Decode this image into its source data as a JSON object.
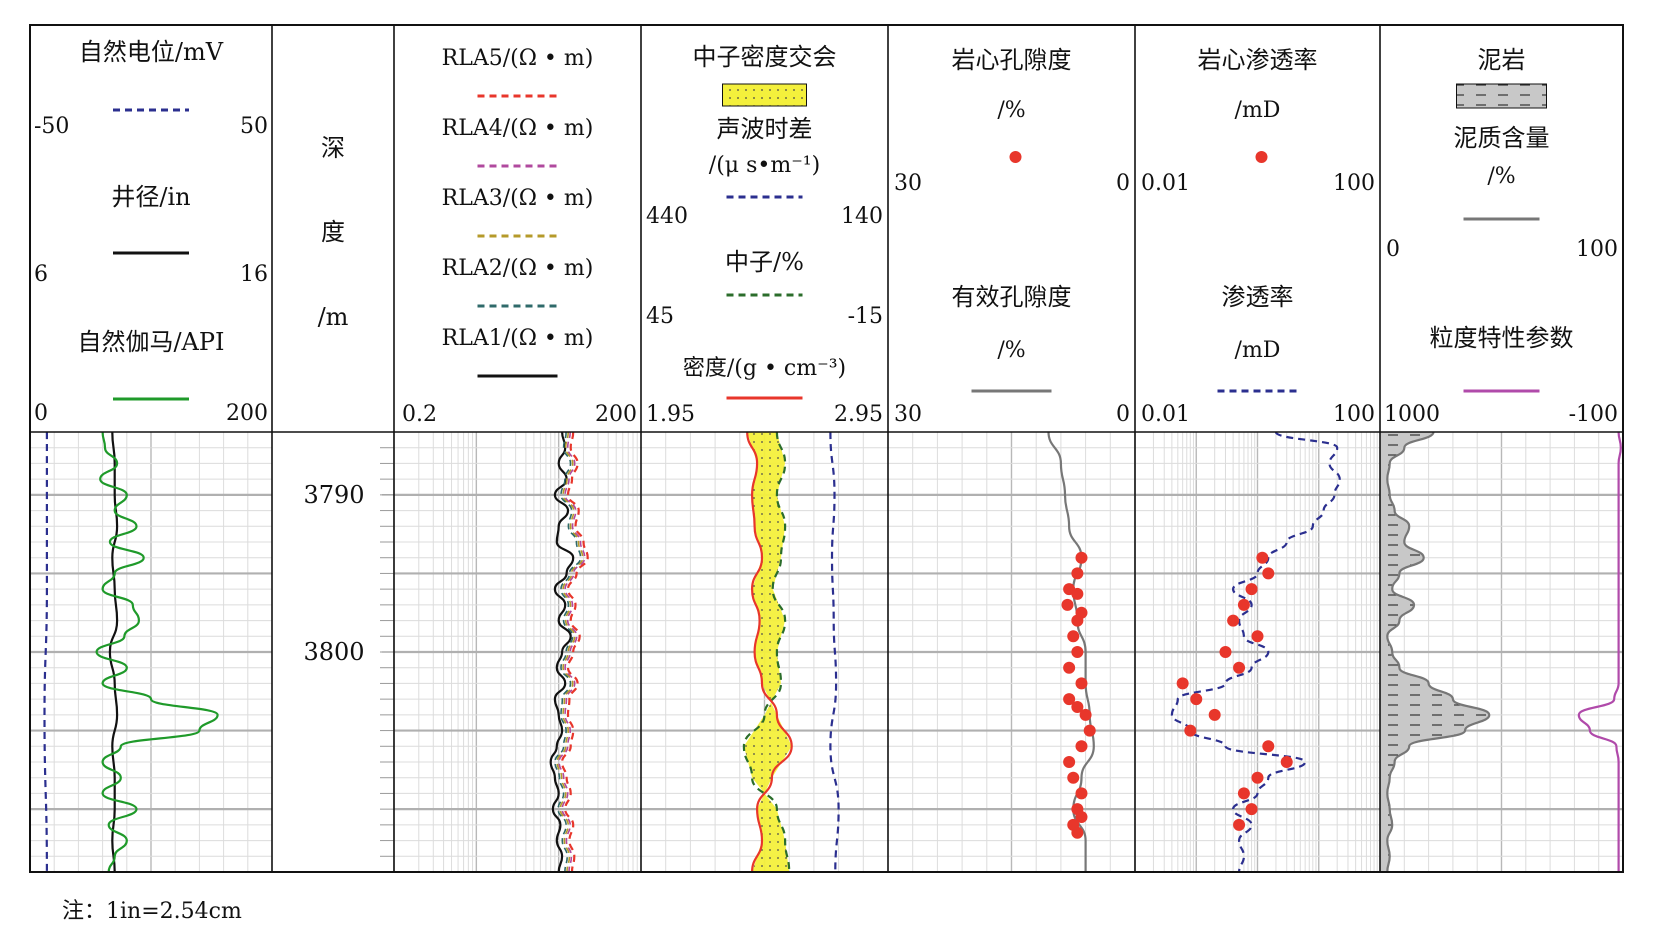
{
  "tracks": [
    {
      "id": "sp-cal-gr",
      "items": [
        {
          "kind": "curve",
          "name": "自然电位/mV",
          "color": "#2b2f8f",
          "dash": true,
          "scale": [
            "-50",
            "50"
          ]
        },
        {
          "kind": "curve",
          "name": "井径/in",
          "color": "#111111",
          "dash": false,
          "scale": [
            "6",
            "16"
          ]
        },
        {
          "kind": "curve",
          "name": "自然伽马/API",
          "color": "#1f9a2a",
          "dash": false,
          "scale": [
            "0",
            "200"
          ]
        }
      ]
    },
    {
      "id": "depth",
      "title": [
        "深",
        "度",
        "/m"
      ]
    },
    {
      "id": "resistivity",
      "items": [
        {
          "kind": "curve",
          "name": "RLA5/(Ω • m)",
          "color": "#e8362b",
          "dash": true
        },
        {
          "kind": "curve",
          "name": "RLA4/(Ω • m)",
          "color": "#b0499e",
          "dash": true
        },
        {
          "kind": "curve",
          "name": "RLA3/(Ω • m)",
          "color": "#b59a2a",
          "dash": true
        },
        {
          "kind": "curve",
          "name": "RLA2/(Ω • m)",
          "color": "#2f6a6a",
          "dash": true
        },
        {
          "kind": "curve",
          "name": "RLA1/(Ω • m)",
          "color": "#111111",
          "dash": false
        }
      ],
      "scale": [
        "0.2",
        "200"
      ]
    },
    {
      "id": "porosity-logs",
      "items": [
        {
          "kind": "fill",
          "name": "中子密度交会",
          "color": "#f4f03c"
        },
        {
          "kind": "curve",
          "name": "声波时差",
          "unit": "/(μ s•m⁻¹)",
          "color": "#2b2f8f",
          "dash": true,
          "scale": [
            "440",
            "140"
          ]
        },
        {
          "kind": "curve",
          "name": "中子/%",
          "color": "#2b6d2b",
          "dash": true,
          "scale": [
            "45",
            "-15"
          ]
        },
        {
          "kind": "curve",
          "name": "密度/(g • cm⁻³)",
          "color": "#e8362b",
          "dash": false,
          "scale": [
            "1.95",
            "2.95"
          ]
        }
      ]
    },
    {
      "id": "porosity",
      "items": [
        {
          "kind": "dot",
          "name": "岩心孔隙度",
          "unit": "/%",
          "color": "#e8362b",
          "scale": [
            "30",
            "0"
          ]
        },
        {
          "kind": "curve",
          "name": "有效孔隙度",
          "unit": "/%",
          "color": "#777777",
          "dash": false,
          "scale": [
            "30",
            "0"
          ]
        }
      ]
    },
    {
      "id": "permeability",
      "items": [
        {
          "kind": "dot",
          "name": "岩心渗透率",
          "unit": "/mD",
          "color": "#e8362b",
          "scale": [
            "0.01",
            "100"
          ]
        },
        {
          "kind": "curve",
          "name": "渗透率",
          "unit": "/mD",
          "color": "#2b2f8f",
          "dash": true,
          "scale": [
            "0.01",
            "100"
          ]
        }
      ]
    },
    {
      "id": "lithology",
      "items": [
        {
          "kind": "pattern",
          "name": "泥岩",
          "color": "#c8c8c8"
        },
        {
          "kind": "curve",
          "name": "泥质含量",
          "unit": "/%",
          "color": "#777777",
          "dash": false,
          "scale": [
            "0",
            "100"
          ]
        },
        {
          "kind": "curve",
          "name": "粒度特性参数",
          "color": "#b04aaa",
          "dash": false,
          "scale": [
            "1000",
            "-100"
          ]
        }
      ]
    }
  ],
  "depth_labels": [
    "3790",
    "3800"
  ],
  "note": "注：1in=2.54cm",
  "chart_data": {
    "type": "line",
    "depth_range": [
      3786,
      3814
    ],
    "depth_unit": "m",
    "depth_ticks": [
      3790,
      3800
    ],
    "series": [
      {
        "name": "自然电位/mV",
        "track": "sp-cal-gr",
        "range": [
          -50,
          50
        ],
        "depth": [
          3786,
          3790,
          3796,
          3804,
          3814
        ],
        "values": [
          -43,
          -43,
          -43,
          -44,
          -43
        ]
      },
      {
        "name": "井径/in",
        "track": "sp-cal-gr",
        "range": [
          6,
          16
        ],
        "depth": [
          3786,
          3788,
          3790,
          3792,
          3794,
          3796,
          3798,
          3800,
          3802,
          3804,
          3806,
          3808,
          3810,
          3812,
          3814
        ],
        "values": [
          9.4,
          9.5,
          9.5,
          9.6,
          9.4,
          9.5,
          9.6,
          9.3,
          9.5,
          9.6,
          9.4,
          9.5,
          9.5,
          9.4,
          9.5
        ]
      },
      {
        "name": "自然伽马/API",
        "track": "sp-cal-gr",
        "range": [
          0,
          200
        ],
        "depth": [
          3786,
          3787,
          3788,
          3789,
          3790,
          3791,
          3792,
          3793,
          3794,
          3795,
          3796,
          3797,
          3798,
          3799,
          3800,
          3801,
          3802,
          3803,
          3804,
          3805,
          3806,
          3807,
          3808,
          3809,
          3810,
          3811,
          3812,
          3813,
          3814
        ],
        "values": [
          60,
          62,
          72,
          58,
          80,
          70,
          88,
          66,
          94,
          70,
          60,
          85,
          90,
          78,
          55,
          80,
          60,
          100,
          155,
          140,
          75,
          60,
          75,
          60,
          88,
          65,
          80,
          70,
          65
        ]
      },
      {
        "name": "RLA1/(Ω • m)",
        "track": "resistivity",
        "range": [
          0.2,
          200
        ],
        "log": true,
        "depth": [
          3786,
          3787,
          3788,
          3789,
          3790,
          3791,
          3792,
          3793,
          3794,
          3795,
          3796,
          3797,
          3798,
          3799,
          3800,
          3801,
          3802,
          3803,
          3804,
          3805,
          3806,
          3807,
          3808,
          3809,
          3810,
          3811,
          3812,
          3813,
          3814
        ],
        "values": [
          22,
          24,
          20,
          25,
          18,
          26,
          20,
          19,
          30,
          25,
          18,
          24,
          20,
          28,
          22,
          19,
          24,
          18,
          20,
          22,
          19,
          16,
          18,
          20,
          17,
          21,
          19,
          22,
          20
        ]
      },
      {
        "name": "RLA5/(Ω • m)",
        "track": "resistivity",
        "range": [
          0.2,
          200
        ],
        "log": true,
        "depth": [
          3786,
          3787,
          3788,
          3789,
          3790,
          3791,
          3792,
          3793,
          3794,
          3795,
          3796,
          3797,
          3798,
          3799,
          3800,
          3801,
          3802,
          3803,
          3804,
          3805,
          3806,
          3807,
          3808,
          3809,
          3810,
          3811,
          3812,
          3813,
          3814
        ],
        "values": [
          30,
          28,
          34,
          29,
          26,
          35,
          32,
          40,
          45,
          33,
          26,
          32,
          28,
          36,
          30,
          26,
          34,
          27,
          26,
          30,
          28,
          22,
          25,
          28,
          24,
          30,
          27,
          31,
          29
        ]
      },
      {
        "name": "声波时差",
        "track": "porosity-logs",
        "range": [
          440,
          140
        ],
        "depth": [
          3786,
          3790,
          3794,
          3798,
          3802,
          3806,
          3810,
          3814
        ],
        "values": [
          210,
          205,
          208,
          206,
          203,
          210,
          200,
          204
        ]
      },
      {
        "name": "中子/%",
        "track": "porosity-logs",
        "range": [
          45,
          -15
        ],
        "depth": [
          3786,
          3788,
          3790,
          3792,
          3794,
          3796,
          3798,
          3800,
          3802,
          3804,
          3806,
          3808,
          3810,
          3812,
          3814
        ],
        "values": [
          12,
          10,
          12,
          10,
          11,
          13,
          10,
          12,
          11,
          15,
          20,
          18,
          12,
          10,
          9
        ]
      },
      {
        "name": "密度/(g • cm⁻³)",
        "track": "porosity-logs",
        "range": [
          1.95,
          2.95
        ],
        "depth": [
          3786,
          3788,
          3790,
          3792,
          3794,
          3796,
          3798,
          3800,
          3802,
          3804,
          3806,
          3808,
          3810,
          3812,
          3814
        ],
        "values": [
          2.38,
          2.42,
          2.4,
          2.41,
          2.44,
          2.4,
          2.43,
          2.41,
          2.44,
          2.5,
          2.56,
          2.48,
          2.42,
          2.44,
          2.4
        ]
      },
      {
        "name": "有效孔隙度",
        "track": "porosity",
        "range": [
          30,
          0
        ],
        "depth": [
          3786,
          3788,
          3790,
          3792,
          3794,
          3796,
          3798,
          3800,
          3802,
          3804,
          3806,
          3808,
          3810,
          3812,
          3814
        ],
        "values": [
          10.5,
          9.0,
          8.5,
          8.0,
          6.5,
          7.5,
          7.0,
          6.0,
          6.0,
          5.5,
          5.0,
          6.5,
          7.5,
          6.0,
          6.0
        ]
      },
      {
        "name": "岩心孔隙度",
        "track": "porosity",
        "kind": "dot",
        "range": [
          30,
          0
        ],
        "depth": [
          3794,
          3795,
          3796,
          3796.3,
          3797,
          3797.5,
          3798,
          3799,
          3800,
          3801,
          3802,
          3803,
          3803.5,
          3804,
          3805,
          3806,
          3807,
          3808,
          3809,
          3810,
          3810.5,
          3811,
          3811.5
        ],
        "values": [
          6.5,
          7.0,
          8.0,
          7.0,
          8.2,
          6.5,
          7.0,
          7.5,
          7.0,
          8.0,
          6.5,
          8.0,
          7.0,
          6.0,
          5.5,
          6.5,
          8.0,
          7.5,
          6.5,
          7.0,
          6.5,
          7.5,
          7.0
        ]
      },
      {
        "name": "渗透率",
        "track": "permeability",
        "range": [
          0.01,
          100
        ],
        "log": true,
        "depth": [
          3786,
          3787,
          3788,
          3789,
          3790,
          3791,
          3792,
          3793,
          3794,
          3795,
          3796,
          3797,
          3798,
          3799,
          3800,
          3801,
          3802,
          3803,
          3804,
          3805,
          3806,
          3807,
          3808,
          3809,
          3810,
          3811,
          3812,
          3813,
          3814
        ],
        "values": [
          2,
          20,
          15,
          22,
          18,
          12,
          8,
          3,
          1.5,
          1.0,
          0.4,
          0.8,
          0.5,
          0.6,
          1.5,
          0.8,
          0.3,
          0.05,
          0.04,
          0.08,
          0.3,
          6,
          1.5,
          1.0,
          0.4,
          0.8,
          0.5,
          0.6,
          0.5
        ]
      },
      {
        "name": "岩心渗透率",
        "track": "permeability",
        "kind": "dot",
        "log": true,
        "range": [
          0.01,
          100
        ],
        "depth": [
          3794,
          3795,
          3796,
          3797,
          3798,
          3799,
          3800,
          3801,
          3802,
          3803,
          3804,
          3805,
          3806,
          3807,
          3808,
          3809,
          3810,
          3811
        ],
        "values": [
          1.2,
          1.5,
          0.8,
          0.6,
          0.4,
          1.0,
          0.3,
          0.5,
          0.06,
          0.1,
          0.2,
          0.08,
          1.5,
          3,
          1.0,
          0.6,
          0.8,
          0.5
        ]
      },
      {
        "name": "泥质含量",
        "track": "lithology",
        "range": [
          0,
          100
        ],
        "depth": [
          3786,
          3787,
          3788,
          3789,
          3790,
          3791,
          3792,
          3793,
          3794,
          3795,
          3796,
          3797,
          3798,
          3799,
          3800,
          3801,
          3802,
          3803,
          3804,
          3805,
          3806,
          3807,
          3808,
          3809,
          3810,
          3811,
          3812,
          3813,
          3814
        ],
        "values": [
          22,
          10,
          4,
          3,
          4,
          6,
          12,
          10,
          18,
          8,
          5,
          14,
          8,
          3,
          5,
          8,
          20,
          30,
          45,
          35,
          12,
          6,
          4,
          3,
          4,
          5,
          3,
          4,
          3
        ]
      },
      {
        "name": "粒度特性参数",
        "track": "lithology",
        "range": [
          1000,
          -100
        ],
        "depth": [
          3786,
          3787,
          3788,
          3789,
          3790,
          3791,
          3792,
          3793,
          3794,
          3795,
          3796,
          3797,
          3798,
          3799,
          3800,
          3801,
          3802,
          3803,
          3804,
          3805,
          3806,
          3807,
          3808,
          3809,
          3810,
          3811,
          3812,
          3813,
          3814
        ],
        "values": [
          -80,
          -90,
          -80,
          -80,
          -80,
          -80,
          -80,
          -80,
          -80,
          -80,
          -80,
          -80,
          -80,
          -80,
          -80,
          -80,
          -80,
          -60,
          100,
          50,
          -70,
          -80,
          -80,
          -80,
          -80,
          -80,
          -80,
          -80,
          -80
        ]
      }
    ]
  }
}
